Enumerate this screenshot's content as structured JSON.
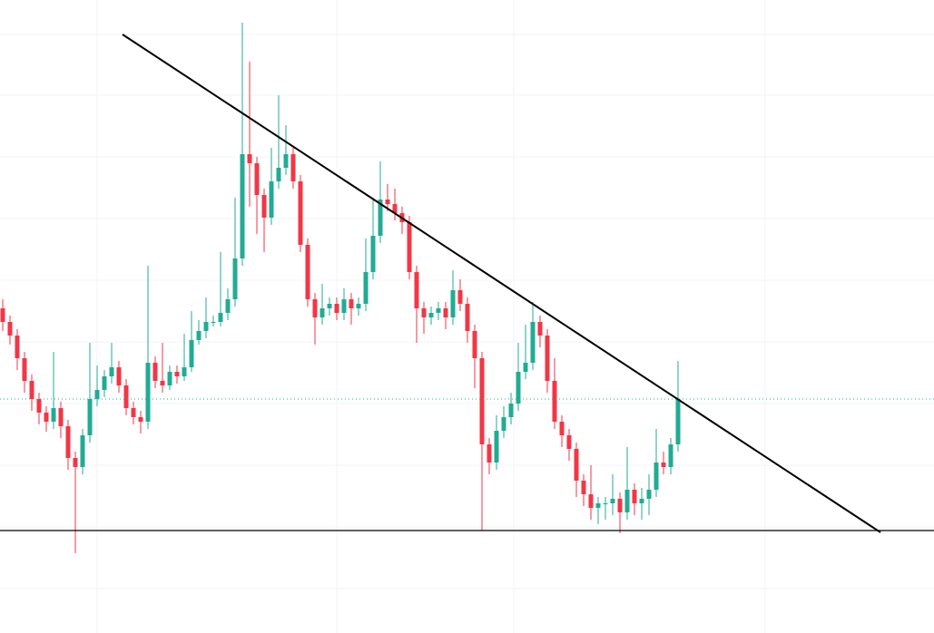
{
  "chart_data": {
    "type": "candlestick",
    "up_color": "#22ab94",
    "down_color": "#f23645",
    "line_color": "#000000",
    "grid": true,
    "xlim": [
      -0.375,
      128.25
    ],
    "ylim": [
      0,
      698
    ],
    "xticks": [
      13,
      46,
      70.375,
      105
    ],
    "yticks": [
      660,
      593,
      525,
      457,
      389,
      321,
      253,
      185,
      117,
      49
    ],
    "open": [
      358,
      343,
      328,
      303,
      278,
      258,
      243,
      233,
      248,
      228,
      193,
      183,
      218,
      258,
      268,
      283,
      293,
      273,
      248,
      238,
      233,
      298,
      278,
      273,
      288,
      283,
      293,
      323,
      333,
      343,
      343,
      353,
      368,
      413,
      528,
      518,
      483,
      458,
      498,
      513,
      528,
      498,
      428,
      368,
      348,
      358,
      363,
      353,
      368,
      358,
      363,
      398,
      438,
      478,
      473,
      463,
      453,
      398,
      358,
      348,
      353,
      358,
      348,
      378,
      363,
      333,
      303,
      208,
      188,
      223,
      238,
      253,
      288,
      298,
      343,
      328,
      278,
      233,
      218,
      203,
      168,
      153,
      138,
      143,
      143,
      148,
      133,
      158,
      143,
      148,
      158,
      188,
      183,
      208
    ],
    "high": [
      368,
      350,
      335,
      310,
      285,
      265,
      250,
      310,
      255,
      235,
      200,
      225,
      320,
      295,
      290,
      320,
      300,
      280,
      255,
      245,
      405,
      305,
      320,
      295,
      295,
      330,
      355,
      345,
      370,
      350,
      420,
      380,
      480,
      673,
      630,
      525,
      490,
      535,
      593,
      560,
      535,
      505,
      435,
      375,
      385,
      370,
      370,
      380,
      375,
      370,
      435,
      480,
      520,
      495,
      490,
      470,
      460,
      405,
      365,
      360,
      365,
      365,
      400,
      390,
      370,
      340,
      310,
      215,
      240,
      250,
      265,
      320,
      340,
      365,
      350,
      335,
      303,
      240,
      225,
      210,
      175,
      185,
      150,
      150,
      175,
      155,
      205,
      165,
      160,
      175,
      225,
      200,
      215,
      300
    ],
    "low": [
      333,
      318,
      290,
      265,
      245,
      230,
      222,
      225,
      215,
      180,
      88,
      175,
      210,
      250,
      260,
      275,
      265,
      240,
      230,
      220,
      225,
      270,
      265,
      268,
      275,
      278,
      288,
      318,
      325,
      338,
      338,
      345,
      360,
      405,
      470,
      440,
      420,
      450,
      490,
      505,
      490,
      420,
      360,
      318,
      340,
      350,
      345,
      345,
      340,
      350,
      355,
      390,
      430,
      465,
      455,
      440,
      390,
      320,
      330,
      340,
      345,
      335,
      340,
      355,
      320,
      270,
      113,
      175,
      180,
      215,
      230,
      245,
      280,
      290,
      315,
      265,
      225,
      205,
      190,
      150,
      140,
      125,
      120,
      125,
      130,
      110,
      125,
      130,
      125,
      130,
      150,
      175,
      175,
      200
    ],
    "close": [
      343,
      328,
      303,
      278,
      258,
      243,
      233,
      248,
      228,
      193,
      183,
      218,
      258,
      268,
      283,
      293,
      273,
      248,
      238,
      233,
      298,
      278,
      273,
      288,
      283,
      293,
      323,
      333,
      343,
      343,
      353,
      368,
      413,
      528,
      518,
      483,
      458,
      498,
      513,
      528,
      498,
      428,
      368,
      348,
      358,
      363,
      353,
      368,
      358,
      363,
      398,
      438,
      478,
      473,
      463,
      453,
      398,
      358,
      348,
      353,
      358,
      348,
      378,
      363,
      333,
      303,
      208,
      188,
      223,
      238,
      253,
      288,
      298,
      343,
      328,
      278,
      233,
      218,
      203,
      168,
      153,
      138,
      143,
      143,
      148,
      133,
      158,
      143,
      148,
      158,
      188,
      183,
      208,
      258
    ],
    "trend_line": {
      "x": [
        16.5,
        120.875
      ],
      "y": [
        660,
        111
      ]
    },
    "horizontal_line": 113
  }
}
